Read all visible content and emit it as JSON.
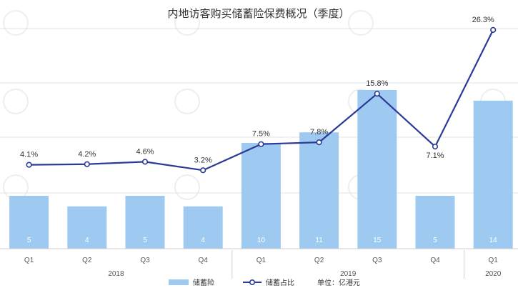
{
  "chart_data": {
    "type": "bar+line",
    "title": "内地访客购买储蓄险保费概况（季度）",
    "categories": [
      "Q1",
      "Q2",
      "Q3",
      "Q4",
      "Q1",
      "Q2",
      "Q3",
      "Q4",
      "Q1"
    ],
    "year_groups": [
      {
        "year": "2018",
        "start": 0,
        "end": 3
      },
      {
        "year": "2019",
        "start": 4,
        "end": 7
      },
      {
        "year": "2020",
        "start": 8,
        "end": 8
      }
    ],
    "series": [
      {
        "name": "储蓄险",
        "type": "bar",
        "values": [
          5,
          4,
          5,
          4,
          10,
          11,
          15,
          5,
          14
        ],
        "color": "#9ecaf2"
      },
      {
        "name": "储蓄占比",
        "type": "line",
        "values": [
          4.1,
          4.2,
          4.6,
          3.2,
          7.5,
          7.8,
          15.8,
          7.1,
          26.3
        ],
        "labels": [
          "4.1%",
          "4.2%",
          "4.6%",
          "3.2%",
          "7.5%",
          "7.8%",
          "15.8%",
          "7.1%",
          "26.3%"
        ],
        "color": "#2b3a96"
      }
    ],
    "unit_note": "单位：亿港元",
    "grid": true,
    "legend_position": "bottom"
  }
}
